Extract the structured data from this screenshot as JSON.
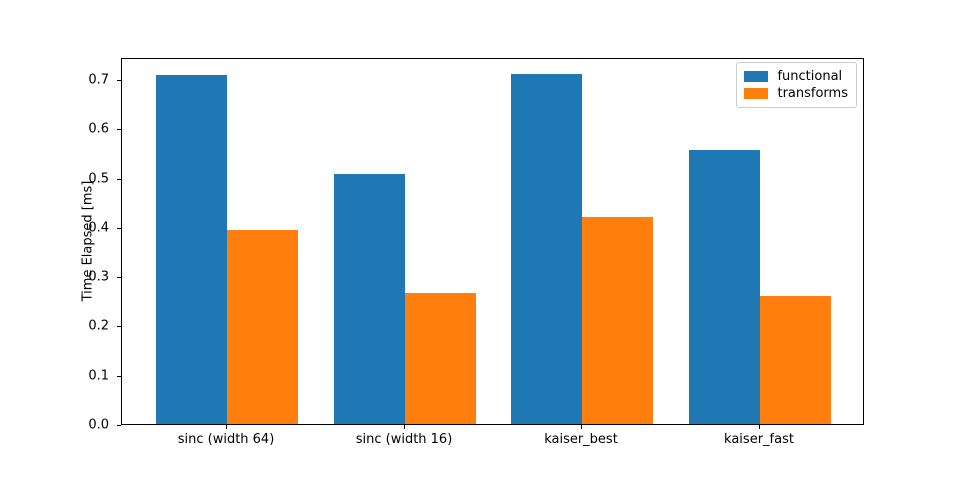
{
  "figure": {
    "background": "#ffffff"
  },
  "chart_data": {
    "type": "bar",
    "title": "",
    "xlabel": "",
    "ylabel": "Time Elapsed [ms]",
    "categories": [
      "sinc (width 64)",
      "sinc (width 16)",
      "kaiser_best",
      "kaiser_fast"
    ],
    "series": [
      {
        "name": "functional",
        "color": "#1f77b4",
        "values": [
          0.708,
          0.507,
          0.711,
          0.556
        ]
      },
      {
        "name": "transforms",
        "color": "#ff7f0e",
        "values": [
          0.393,
          0.265,
          0.42,
          0.259
        ]
      }
    ],
    "x_positions": [
      0,
      1,
      2,
      3
    ],
    "bar_width": 0.4,
    "xlim": [
      -0.59,
      3.59
    ],
    "ylim": [
      0,
      0.745
    ],
    "yticks": [
      0.0,
      0.1,
      0.2,
      0.3,
      0.4,
      0.5,
      0.6,
      0.7
    ],
    "ytick_labels": [
      "0.0",
      "0.1",
      "0.2",
      "0.3",
      "0.4",
      "0.5",
      "0.6",
      "0.7"
    ],
    "grid": false,
    "legend_position": "upper right"
  }
}
